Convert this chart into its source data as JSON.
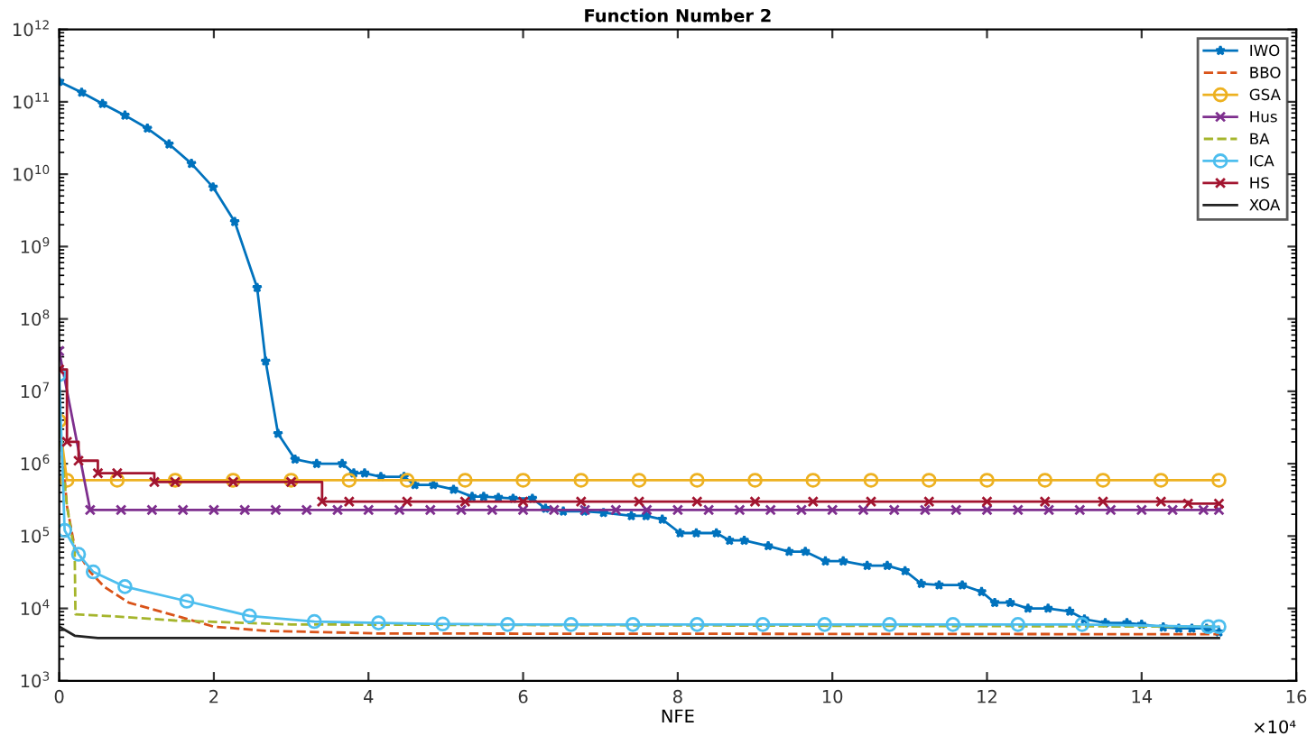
{
  "chart_data": {
    "type": "line",
    "title": "Function Number 2",
    "xlabel": "NFE",
    "annotations": [
      "×10⁴"
    ],
    "xlim": [
      0,
      16
    ],
    "xticks": [
      0,
      2,
      4,
      6,
      8,
      10,
      12,
      14,
      16
    ],
    "log": "y",
    "ylim": [
      1000,
      1000000000000
    ],
    "yticks": [
      {
        "value": 1000,
        "label": "10$^{3}$"
      },
      {
        "value": 10000,
        "label": "10$^{4}$"
      },
      {
        "value": 100000,
        "label": "10$^{5}$"
      },
      {
        "value": 1000000,
        "label": "10$^{6}$"
      },
      {
        "value": 10000000,
        "label": "10$^{7}$"
      },
      {
        "value": 100000000,
        "label": "10$^{8}$"
      },
      {
        "value": 1000000000,
        "label": "10$^{9}$"
      },
      {
        "value": 10000000000,
        "label": "10$^{10}$"
      },
      {
        "value": 100000000000,
        "label": "10$^{11}$"
      },
      {
        "value": 1000000000000,
        "label": "10$^{12}$"
      }
    ],
    "grid": false,
    "legend": "top right",
    "series": [
      {
        "name": "IWO",
        "color": "#0072bd",
        "marker": "star",
        "line_style": "solid",
        "x": [
          0,
          0.29,
          0.56,
          0.85,
          1.14,
          1.42,
          1.71,
          1.99,
          2.27,
          2.56,
          2.67,
          2.83,
          3.05,
          3.33,
          3.66,
          3.81,
          3.95,
          4.16,
          4.46,
          4.6,
          4.84,
          5.1,
          5.34,
          5.49,
          5.68,
          5.87,
          6.12,
          6.29,
          6.52,
          6.79,
          7.04,
          7.4,
          7.59,
          7.8,
          8.03,
          8.24,
          8.5,
          8.67,
          8.86,
          9.17,
          9.44,
          9.65,
          9.91,
          10.14,
          10.45,
          10.71,
          10.94,
          11.15,
          11.38,
          11.68,
          11.93,
          12.1,
          12.3,
          12.53,
          12.79,
          13.07,
          13.26,
          13.53,
          13.81,
          14.0,
          14.28,
          14.48,
          14.65,
          14.84,
          15.0
        ],
        "values": [
          190000000000,
          135000000000,
          94000000000,
          65000000000,
          43000000000,
          26000000000,
          14000000000,
          6600000000,
          2200000000,
          270000000,
          26000000,
          2600000,
          1150000,
          1000000,
          1000000,
          740000,
          740000,
          660000,
          660000,
          510000,
          510000,
          440000,
          350000,
          350000,
          340000,
          330000,
          330000,
          240000,
          220000,
          220000,
          210000,
          190000,
          190000,
          170000,
          110000,
          110000,
          110000,
          87000,
          87000,
          73000,
          61000,
          61000,
          45000,
          45000,
          39000,
          39000,
          33000,
          22000,
          21000,
          21000,
          17000,
          12000,
          12000,
          10000,
          10000,
          9100,
          7100,
          6300,
          6300,
          6000,
          5500,
          5300,
          5300,
          5300,
          4700
        ]
      },
      {
        "name": "BBO",
        "color": "#d95319",
        "marker": "none",
        "line_style": "dashed",
        "x": [
          0,
          0.1,
          0.2,
          0.4,
          0.58,
          0.9,
          1.57,
          2.0,
          2.67,
          4.16,
          15.0
        ],
        "values": [
          5000000,
          260000,
          70000,
          32000,
          20000,
          12000,
          7600,
          5600,
          4900,
          4500,
          4400
        ]
      },
      {
        "name": "GSA",
        "color": "#edb120",
        "marker": "circle",
        "line_style": "solid",
        "x": [
          0,
          0.1,
          0.75,
          1.5,
          2.25,
          3.0,
          3.75,
          4.5,
          5.25,
          6.0,
          6.75,
          7.5,
          8.25,
          9.0,
          9.75,
          10.5,
          11.25,
          12.0,
          12.75,
          13.5,
          14.25,
          15.0
        ],
        "values": [
          3900000,
          590000,
          590000,
          590000,
          590000,
          590000,
          590000,
          590000,
          590000,
          590000,
          590000,
          590000,
          590000,
          590000,
          590000,
          590000,
          590000,
          590000,
          590000,
          590000,
          590000,
          590000
        ]
      },
      {
        "name": "Hus",
        "color": "#7e2f8e",
        "marker": "cross",
        "line_style": "solid",
        "x": [
          0,
          0.4,
          0.8,
          1.2,
          1.6,
          2.0,
          2.4,
          2.8,
          3.2,
          3.6,
          4.0,
          4.4,
          4.8,
          5.2,
          5.6,
          6.0,
          6.4,
          6.8,
          7.2,
          7.6,
          8.0,
          8.4,
          8.8,
          9.2,
          9.6,
          10.0,
          10.4,
          10.8,
          11.2,
          11.6,
          12.0,
          12.4,
          12.8,
          13.2,
          13.6,
          14.0,
          14.4,
          14.8,
          15.0
        ],
        "values": [
          36000000,
          230000,
          230000,
          230000,
          230000,
          230000,
          230000,
          230000,
          230000,
          230000,
          230000,
          230000,
          230000,
          230000,
          230000,
          230000,
          230000,
          230000,
          230000,
          230000,
          230000,
          230000,
          230000,
          230000,
          230000,
          230000,
          230000,
          230000,
          230000,
          230000,
          230000,
          230000,
          230000,
          230000,
          230000,
          230000,
          230000,
          230000,
          230000
        ]
      },
      {
        "name": "BA",
        "color": "#a5b52c",
        "marker": "none",
        "line_style": "dashed",
        "x": [
          0,
          0.1,
          0.2,
          0.21,
          0.6,
          1.5,
          3.0,
          15.0
        ],
        "values": [
          3000000,
          260000,
          60000,
          8300,
          7900,
          6800,
          6000,
          5600
        ]
      },
      {
        "name": "ICA",
        "color": "#4dbeee",
        "marker": "circle",
        "line_style": "solid",
        "x": [
          0,
          0.07,
          0.25,
          0.44,
          0.85,
          1.65,
          2.46,
          3.3,
          4.13,
          4.96,
          5.8,
          6.62,
          7.42,
          8.25,
          9.1,
          9.9,
          10.74,
          11.56,
          12.4,
          13.23,
          14.86,
          15.0
        ],
        "values": [
          17000000,
          120000,
          56000,
          32000,
          20000,
          12600,
          7900,
          6600,
          6300,
          6100,
          6000,
          6000,
          6000,
          6000,
          6000,
          6000,
          6000,
          6000,
          6000,
          6000,
          5600,
          5600
        ]
      },
      {
        "name": "HS",
        "color": "#a2142f",
        "marker": "cross",
        "line_style": "solid",
        "type": "step",
        "x": [
          0,
          0.1,
          0.25,
          0.5,
          0.75,
          1.23,
          1.5,
          2.25,
          3.0,
          3.4,
          3.75,
          4.5,
          5.25,
          6.0,
          6.75,
          7.5,
          8.25,
          9.0,
          9.75,
          10.5,
          11.25,
          12.0,
          12.75,
          13.5,
          14.25,
          14.6,
          15.0
        ],
        "values": [
          20000000,
          2000000,
          1100000,
          740000,
          740000,
          560000,
          560000,
          560000,
          560000,
          300000,
          300000,
          300000,
          300000,
          300000,
          300000,
          300000,
          300000,
          300000,
          300000,
          300000,
          300000,
          300000,
          300000,
          300000,
          300000,
          280000,
          280000
        ]
      },
      {
        "name": "XOA",
        "color": "#222222",
        "marker": "none",
        "line_style": "solid",
        "x": [
          0,
          0.2,
          0.5,
          15.0
        ],
        "values": [
          5600,
          4200,
          3900,
          3900
        ]
      }
    ]
  }
}
